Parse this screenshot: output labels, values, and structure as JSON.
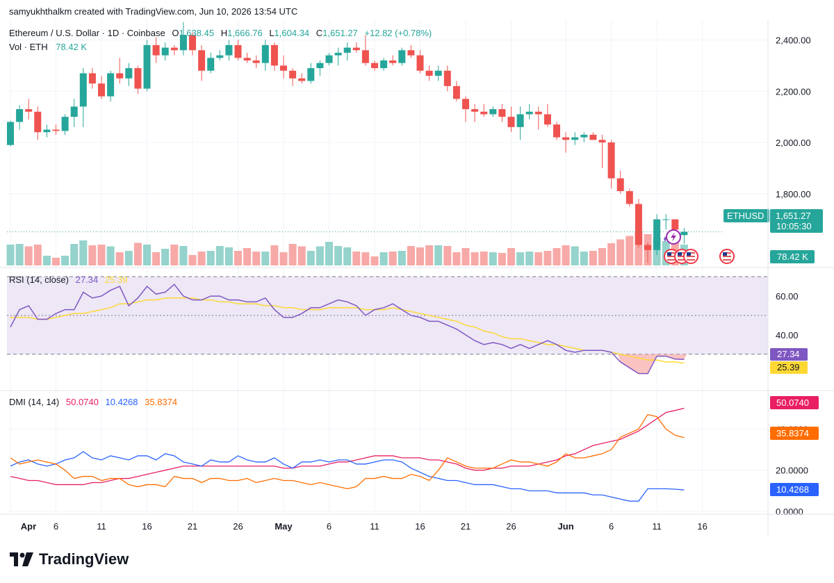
{
  "watermark": "samyukhthalkm created with TradingView.com, Jun 10, 2026 13:54 UTC",
  "legend": {
    "symbol": "Ethereum / U.S. Dollar · 1D · Coinbase",
    "o_label": "O",
    "o_value": "1,638.45",
    "h_label": "H",
    "h_value": "1,666.76",
    "l_label": "L",
    "l_value": "1,604.34",
    "c_label": "C",
    "c_value": "1,651.27",
    "change": "+12.82 (+0.78%)",
    "vol_label": "Vol · ETH",
    "vol_value": "78.42 K"
  },
  "rsi_legend": {
    "label": "RSI (14, close)",
    "rsi": "27.34",
    "ma": "25.39"
  },
  "dmi_legend": {
    "label": "DMI (14, 14)",
    "adx": "50.0740",
    "plus_di": "10.4268",
    "minus_di": "35.8374"
  },
  "badges": {
    "symbol": "ETHUSD",
    "price": "1,651.27",
    "countdown": "10:05:30",
    "vol": "78.42 K",
    "rsi": "27.34",
    "rsi_ma": "25.39",
    "adx": "50.0740",
    "minus_di": "35.8374",
    "plus_di": "10.4268"
  },
  "colors": {
    "up": "#26a69a",
    "down": "#ef5350",
    "vol_up": "#95d3cc",
    "vol_down": "#f7a9a7",
    "rsi": "#7e57c2",
    "rsi_ma": "#fdd835",
    "rsi_band": "#ede7f6",
    "adx": "#e91e63",
    "plus_di": "#2962ff",
    "minus_di": "#ff6d00",
    "text_grey": "#131722"
  },
  "logo_text": "TradingView",
  "chart_data": [
    {
      "type": "candlestick",
      "title": "Ethereum / U.S. Dollar · 1D · Coinbase",
      "x_ticks": [
        "Apr",
        "6",
        "11",
        "16",
        "21",
        "26",
        "May",
        "6",
        "11",
        "16",
        "21",
        "26",
        "Jun",
        "6",
        "11",
        "16"
      ],
      "y_ticks": [
        "1,800.00",
        "2,000.00",
        "2,200.00",
        "2,400.00"
      ],
      "ylim": [
        1520,
        2480
      ],
      "ohlc": [
        [
          1990,
          2085,
          1985,
          2080
        ],
        [
          2080,
          2145,
          2050,
          2130
        ],
        [
          2130,
          2170,
          2090,
          2120
        ],
        [
          2120,
          2140,
          2010,
          2040
        ],
        [
          2040,
          2070,
          2020,
          2050
        ],
        [
          2050,
          2070,
          2030,
          2045
        ],
        [
          2045,
          2110,
          2030,
          2100
        ],
        [
          2100,
          2170,
          2060,
          2140
        ],
        [
          2140,
          2290,
          2060,
          2270
        ],
        [
          2270,
          2290,
          2210,
          2230
        ],
        [
          2230,
          2260,
          2170,
          2180
        ],
        [
          2180,
          2280,
          2160,
          2270
        ],
        [
          2270,
          2330,
          2230,
          2250
        ],
        [
          2250,
          2310,
          2220,
          2290
        ],
        [
          2290,
          2300,
          2190,
          2210
        ],
        [
          2210,
          2400,
          2200,
          2380
        ],
        [
          2380,
          2410,
          2310,
          2340
        ],
        [
          2340,
          2390,
          2320,
          2370
        ],
        [
          2370,
          2380,
          2340,
          2360
        ],
        [
          2360,
          2470,
          2340,
          2420
        ],
        [
          2420,
          2430,
          2340,
          2360
        ],
        [
          2360,
          2380,
          2240,
          2280
        ],
        [
          2280,
          2350,
          2270,
          2330
        ],
        [
          2330,
          2360,
          2320,
          2340
        ],
        [
          2340,
          2400,
          2320,
          2380
        ],
        [
          2380,
          2400,
          2320,
          2330
        ],
        [
          2330,
          2350,
          2310,
          2320
        ],
        [
          2320,
          2340,
          2290,
          2310
        ],
        [
          2310,
          2400,
          2280,
          2380
        ],
        [
          2380,
          2390,
          2280,
          2300
        ],
        [
          2300,
          2340,
          2250,
          2280
        ],
        [
          2280,
          2290,
          2220,
          2250
        ],
        [
          2250,
          2270,
          2230,
          2240
        ],
        [
          2240,
          2310,
          2230,
          2290
        ],
        [
          2290,
          2320,
          2260,
          2310
        ],
        [
          2310,
          2350,
          2300,
          2340
        ],
        [
          2340,
          2370,
          2300,
          2350
        ],
        [
          2350,
          2390,
          2320,
          2370
        ],
        [
          2370,
          2390,
          2350,
          2360
        ],
        [
          2360,
          2420,
          2300,
          2310
        ],
        [
          2310,
          2320,
          2280,
          2290
        ],
        [
          2290,
          2330,
          2280,
          2320
        ],
        [
          2320,
          2340,
          2300,
          2310
        ],
        [
          2310,
          2370,
          2300,
          2360
        ],
        [
          2360,
          2380,
          2330,
          2340
        ],
        [
          2340,
          2360,
          2270,
          2280
        ],
        [
          2280,
          2300,
          2240,
          2260
        ],
        [
          2260,
          2300,
          2240,
          2280
        ],
        [
          2280,
          2300,
          2200,
          2220
        ],
        [
          2220,
          2240,
          2160,
          2170
        ],
        [
          2170,
          2180,
          2080,
          2130
        ],
        [
          2130,
          2150,
          2080,
          2120
        ],
        [
          2120,
          2150,
          2100,
          2110
        ],
        [
          2110,
          2140,
          2100,
          2130
        ],
        [
          2130,
          2150,
          2080,
          2100
        ],
        [
          2100,
          2140,
          2040,
          2060
        ],
        [
          2060,
          2140,
          2010,
          2110
        ],
        [
          2110,
          2150,
          2090,
          2120
        ],
        [
          2120,
          2140,
          2050,
          2110
        ],
        [
          2110,
          2150,
          2060,
          2070
        ],
        [
          2070,
          2080,
          2010,
          2020
        ],
        [
          2020,
          2040,
          1960,
          2010
        ],
        [
          2010,
          2040,
          1990,
          2020
        ],
        [
          2020,
          2040,
          2000,
          2030
        ],
        [
          2030,
          2040,
          2010,
          2010
        ],
        [
          2010,
          2030,
          1900,
          2000
        ],
        [
          2000,
          2010,
          1820,
          1860
        ],
        [
          1860,
          1890,
          1800,
          1810
        ],
        [
          1810,
          1820,
          1750,
          1760
        ],
        [
          1760,
          1780,
          1590,
          1600
        ],
        [
          1600,
          1610,
          1530,
          1580
        ],
        [
          1580,
          1720,
          1560,
          1700
        ],
        [
          1700,
          1720,
          1660,
          1700
        ],
        [
          1700,
          1700,
          1630,
          1660
        ],
        [
          1638.45,
          1666.76,
          1604.34,
          1651.27
        ]
      ]
    },
    {
      "type": "bar",
      "title": "Vol · ETH",
      "values": [
        60,
        62,
        55,
        60,
        28,
        22,
        28,
        62,
        72,
        58,
        60,
        55,
        38,
        42,
        65,
        60,
        38,
        48,
        60,
        56,
        30,
        40,
        42,
        56,
        52,
        42,
        50,
        40,
        40,
        58,
        38,
        62,
        55,
        42,
        55,
        68,
        56,
        52,
        40,
        38,
        26,
        38,
        40,
        42,
        56,
        52,
        58,
        58,
        56,
        38,
        50,
        38,
        40,
        38,
        36,
        50,
        38,
        40,
        38,
        42,
        50,
        58,
        55,
        40,
        42,
        50,
        64,
        75,
        85,
        100,
        90,
        80,
        70,
        72,
        60
      ],
      "ylim": [
        0,
        100
      ]
    },
    {
      "type": "line",
      "title": "RSI (14, close)",
      "y_ticks": [
        "40.00",
        "60.00"
      ],
      "ylim": [
        12,
        74
      ],
      "bands": [
        30,
        50,
        70
      ],
      "series": [
        {
          "name": "RSI",
          "values": [
            44,
            53,
            55,
            48,
            48,
            51,
            53,
            53,
            62,
            59,
            60,
            63,
            65,
            55,
            59,
            65,
            61,
            62,
            66,
            60,
            58,
            58,
            60,
            60,
            58,
            58,
            57,
            57,
            59,
            53,
            49,
            49,
            51,
            54,
            54,
            56,
            58,
            57,
            55,
            50,
            53,
            54,
            56,
            53,
            50,
            49,
            47,
            47,
            45,
            43,
            40,
            37,
            35,
            36,
            35,
            33,
            35,
            33,
            35,
            37,
            35,
            32,
            31,
            32,
            32,
            32,
            31,
            26,
            23,
            20,
            20,
            29,
            29,
            27.5,
            27.34
          ]
        },
        {
          "name": "MA",
          "values": [
            49,
            49,
            49,
            48,
            48,
            49,
            50,
            51,
            51,
            52,
            53,
            54,
            56,
            56,
            57,
            58,
            58,
            59,
            59,
            59,
            59,
            58,
            58,
            57,
            57,
            56,
            56,
            56,
            55,
            55,
            54,
            54,
            53,
            53,
            53,
            54,
            54,
            54,
            54,
            53,
            53,
            53,
            54,
            53,
            52,
            51,
            50,
            49,
            48,
            47,
            45,
            44,
            42,
            41,
            39,
            38,
            38,
            37,
            36,
            35,
            35,
            34,
            33,
            32,
            32,
            32,
            31,
            30,
            29,
            28,
            27,
            27,
            26,
            26,
            25.39
          ]
        }
      ]
    },
    {
      "type": "line",
      "title": "DMI (14, 14)",
      "y_ticks": [
        "0.0000",
        "20.0000",
        "40.0000"
      ],
      "ylim": [
        0,
        58
      ],
      "series": [
        {
          "name": "ADX",
          "values": [
            17,
            16,
            15,
            15,
            14,
            13,
            13,
            13,
            13,
            14,
            14,
            15,
            16,
            16,
            17,
            18,
            19,
            20,
            21,
            22,
            22,
            22,
            22,
            22,
            22,
            22,
            22,
            22,
            22,
            22,
            21,
            21,
            22,
            22,
            22,
            23,
            24,
            24,
            25,
            26,
            27,
            27,
            27,
            26,
            26,
            26,
            25,
            25,
            24,
            23,
            21,
            20,
            20,
            21,
            21,
            22,
            22,
            22,
            23,
            24,
            25,
            27,
            28,
            30,
            32,
            33,
            34,
            35,
            37,
            39,
            42,
            45,
            48,
            49,
            50.074
          ]
        },
        {
          "name": "+DI",
          "values": [
            22,
            24,
            25,
            23,
            22,
            23,
            25,
            26,
            29,
            26,
            25,
            27,
            26,
            25,
            27,
            27,
            25,
            28,
            27,
            24,
            23,
            22,
            25,
            24,
            24,
            27,
            25,
            24,
            24,
            26,
            23,
            21,
            24,
            24,
            25,
            24,
            25,
            25,
            23,
            23,
            24,
            25,
            25,
            24,
            21,
            19,
            17,
            16,
            15,
            15,
            14,
            13,
            13,
            13,
            12,
            11,
            11,
            10,
            10,
            10,
            9,
            9,
            9,
            9,
            8,
            8,
            7,
            6,
            5,
            5,
            11,
            11,
            11,
            10.8,
            10.4268
          ]
        },
        {
          "name": "-DI",
          "values": [
            26,
            23,
            24,
            25,
            24,
            23,
            20,
            16,
            17,
            17,
            15,
            16,
            16,
            13,
            12,
            13,
            13,
            12,
            17,
            16,
            16,
            14,
            16,
            16,
            15,
            15,
            16,
            14,
            15,
            16,
            15,
            15,
            14,
            13,
            14,
            13,
            12,
            11,
            12,
            16,
            16,
            17,
            16,
            16,
            18,
            17,
            15,
            20,
            26,
            24,
            22,
            21,
            21,
            21,
            23,
            25,
            24,
            24,
            23,
            22,
            24,
            28,
            26,
            26,
            27,
            28,
            30,
            36,
            38,
            40,
            47,
            46,
            40,
            37,
            35.8374
          ]
        }
      ]
    }
  ]
}
